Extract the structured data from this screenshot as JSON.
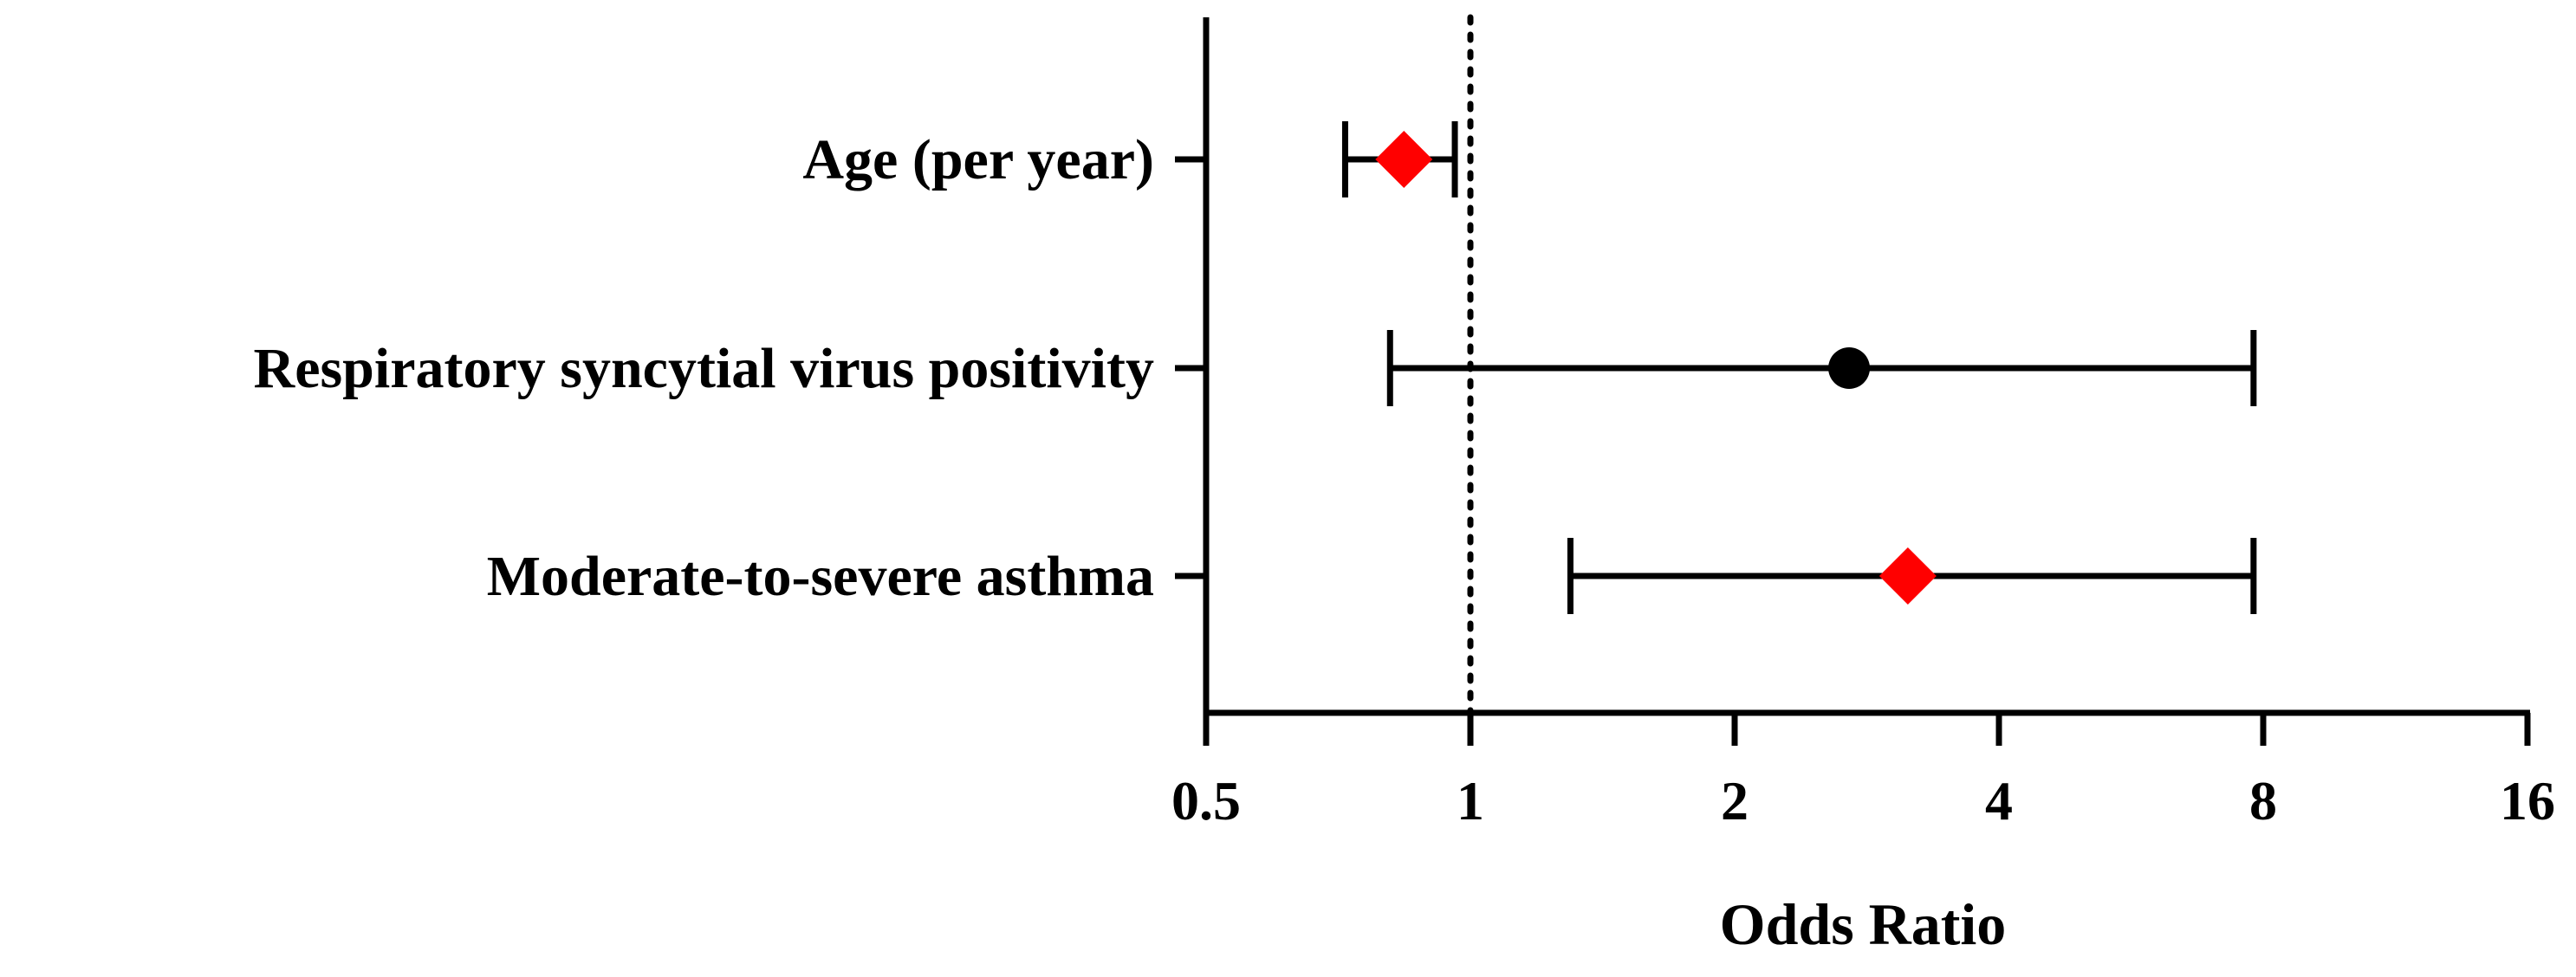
{
  "chart_data": {
    "type": "forest",
    "xlabel": "Odds Ratio",
    "xscale": "log2",
    "xlim": [
      0.5,
      16
    ],
    "xticks": [
      0.5,
      1,
      2,
      4,
      8,
      16
    ],
    "xtick_labels": [
      "0.5",
      "1",
      "2",
      "4",
      "8",
      "16"
    ],
    "reference_line": 1,
    "grid": false,
    "categories": [
      "Age (per year)",
      "Respiratory syncytial virus positivity",
      "Moderate-to-severe asthma"
    ],
    "series": [
      {
        "points": [
          {
            "category": "Age (per year)",
            "or": 0.84,
            "lower": 0.72,
            "upper": 0.96,
            "marker": "diamond",
            "color": "#ff0000"
          },
          {
            "category": "Respiratory syncytial virus positivity",
            "or": 2.7,
            "lower": 0.81,
            "upper": 7.8,
            "marker": "circle",
            "color": "#000000"
          },
          {
            "category": "Moderate-to-severe asthma",
            "or": 3.15,
            "lower": 1.3,
            "upper": 7.8,
            "marker": "diamond",
            "color": "#ff0000"
          }
        ]
      }
    ]
  }
}
